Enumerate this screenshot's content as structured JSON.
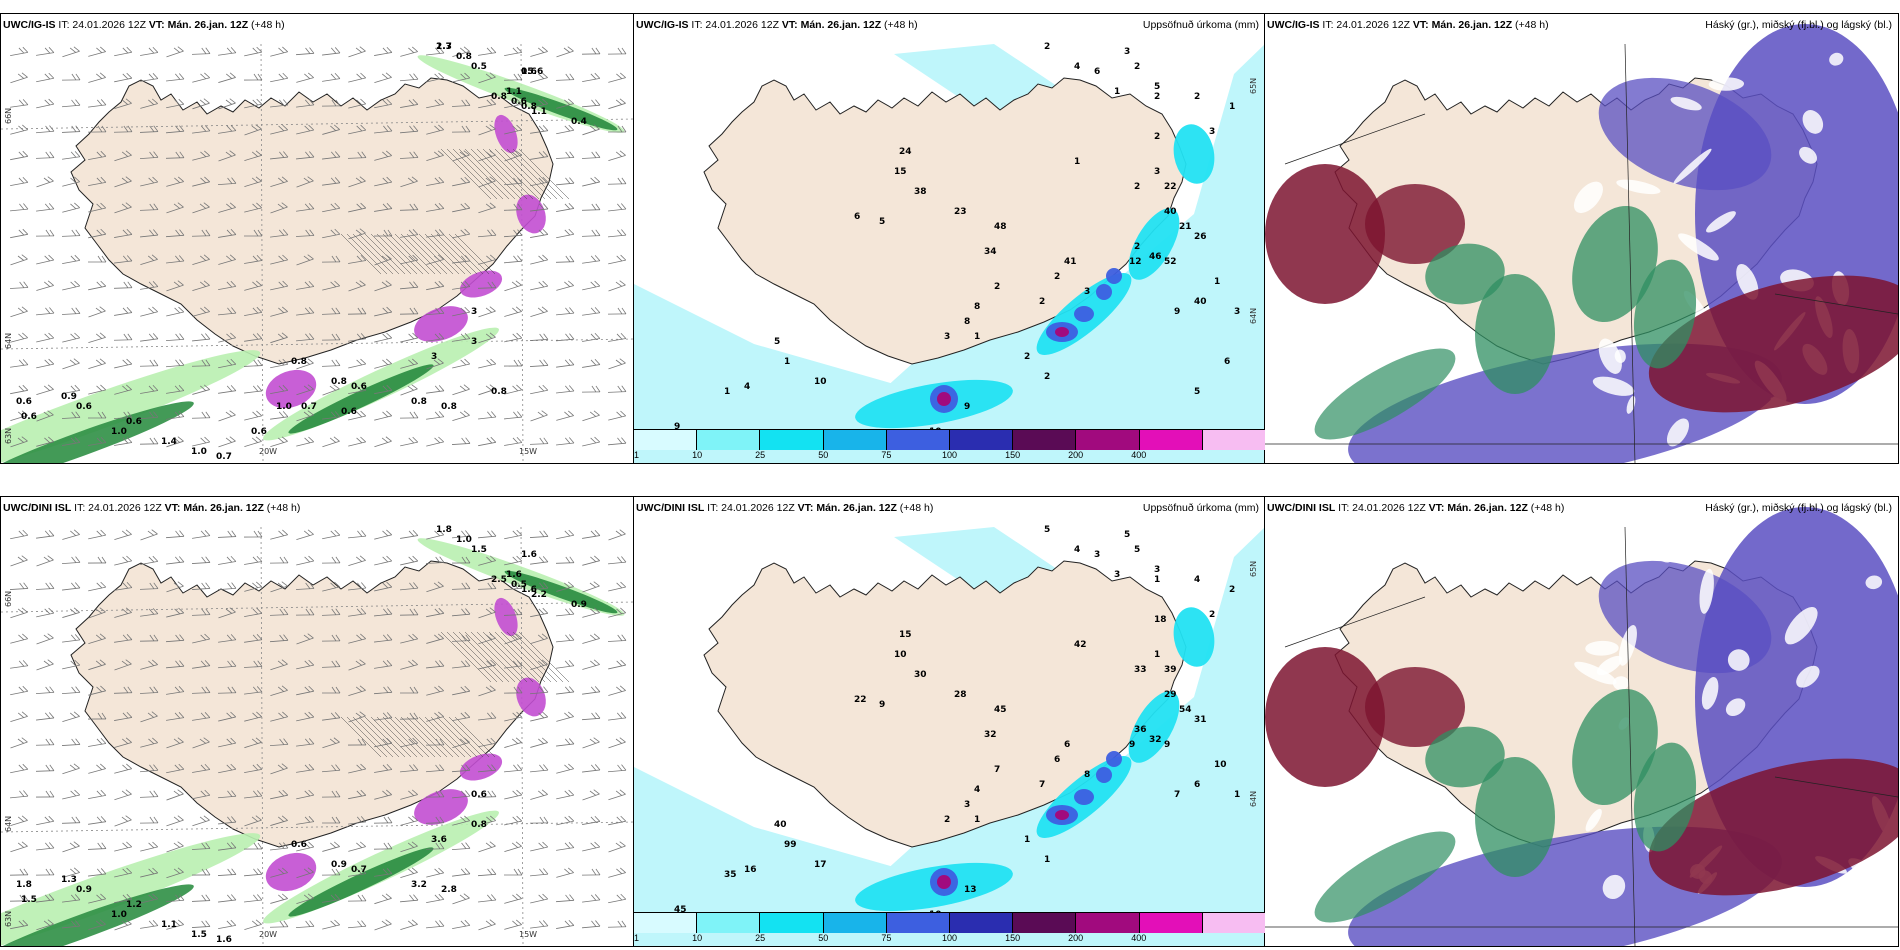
{
  "panels": [
    {
      "model": "UWC/IG-IS",
      "it": "IT: 24.01.2026 12Z",
      "vt_label": "VT:",
      "vt": "Mán. 26.jan. 12Z",
      "lead": "(+48 h)",
      "title": "",
      "axis": [
        "66N",
        "64N",
        "63N",
        "20W",
        "15W"
      ]
    },
    {
      "model": "UWC/IG-IS",
      "it": "IT: 24.01.2026 12Z",
      "vt_label": "VT:",
      "vt": "Mán. 26.jan. 12Z",
      "lead": "(+48 h)",
      "title": "Uppsöfnuð úrkoma (mm)",
      "axis": [
        "65N",
        "64N"
      ]
    },
    {
      "model": "UWC/IG-IS",
      "it": "IT: 24.01.2026 12Z",
      "vt_label": "VT:",
      "vt": "Mán. 26.jan. 12Z",
      "lead": "(+48 h)",
      "title": "Háský (gr.), miðský (fj.bl.) og lágský (bl.)",
      "axis": []
    },
    {
      "model": "UWC/DINI ISL",
      "it": "IT: 24.01.2026 12Z",
      "vt_label": "VT:",
      "vt": "Mán. 26.jan. 12Z",
      "lead": "(+48 h)",
      "title": "",
      "axis": [
        "66N",
        "64N",
        "63N",
        "20W",
        "15W"
      ]
    },
    {
      "model": "UWC/DINI ISL",
      "it": "IT: 24.01.2026 12Z",
      "vt_label": "VT:",
      "vt": "Mán. 26.jan. 12Z",
      "lead": "(+48 h)",
      "title": "Uppsöfnuð úrkoma (mm)",
      "axis": [
        "65N",
        "64N"
      ]
    },
    {
      "model": "UWC/DINI ISL",
      "it": "IT: 24.01.2026 12Z",
      "vt_label": "VT:",
      "vt": "Mán. 26.jan. 12Z",
      "lead": "(+48 h)",
      "title": "Háský (gr.), miðský (fj.bl.) og lágský (bl.)",
      "axis": []
    }
  ],
  "precip_colorbar": {
    "ticks": [
      "1",
      "10",
      "25",
      "50",
      "75",
      "100",
      "150",
      "200",
      "400"
    ],
    "colors": [
      "#d8fbff",
      "#7ff3f8",
      "#13e2f2",
      "#18b4ea",
      "#3d5fe0",
      "#2a2db0",
      "#5a0b55",
      "#a10a7e",
      "#e30fb8",
      "#f7bdf2"
    ]
  },
  "colors": {
    "land": "#f4e6d8",
    "precip_light": "#bff6fb",
    "precip_mid": "#22e2f2",
    "cloud_low": "#5a4fc2",
    "cloud_high": "#7c1430",
    "cloud_mid": "#2f8f62",
    "wind_bands": "#2f8f45",
    "snow_magenta": "#c24ed1"
  },
  "wind_labels_top": [
    "0.6",
    "1.7",
    "0.8",
    "0.5",
    "1.1",
    "0.8",
    "0.6",
    "0.8",
    "1.1",
    "0.4",
    "3",
    "3",
    "0.8",
    "0.8",
    "0.6",
    "3",
    "0.8",
    "0.8",
    "0.9",
    "0.6",
    "0.6",
    "0.6",
    "0.6",
    "1.4",
    "1.0",
    "0.7",
    "1.0",
    "0.8",
    "0.7",
    "0.6",
    "1.0",
    "0.6",
    "15.6",
    "2.3"
  ],
  "wind_labels_bot": [
    "1.6",
    "1.8",
    "1.0",
    "1.5",
    "1.6",
    "2.5",
    "0.5",
    "1.6",
    "2.2",
    "0.9",
    "0.6",
    "0.8",
    "0.6",
    "0.9",
    "0.7",
    "3.6",
    "3.2",
    "2.8",
    "1.3",
    "1.8",
    "0.9",
    "1.5",
    "1.2",
    "1.1",
    "1.5",
    "1.6",
    "1.0"
  ],
  "precip_labels_top": [
    "2",
    "3",
    "4",
    "6",
    "2",
    "5",
    "1",
    "2",
    "2",
    "1",
    "3",
    "2",
    "3",
    "1",
    "2",
    "22",
    "40",
    "21",
    "26",
    "2",
    "12",
    "46",
    "52",
    "41",
    "2",
    "3",
    "2",
    "2",
    "8",
    "8",
    "3",
    "1",
    "2",
    "2",
    "9",
    "10",
    "10",
    "4",
    "9",
    "5",
    "1",
    "1",
    "6",
    "5",
    "15",
    "24",
    "38",
    "23",
    "34",
    "48",
    "9",
    "40",
    "1",
    "3",
    "6",
    "5"
  ],
  "precip_labels_bot": [
    "5",
    "5",
    "4",
    "3",
    "5",
    "3",
    "3",
    "1",
    "4",
    "2",
    "2",
    "18",
    "1",
    "42",
    "33",
    "39",
    "29",
    "54",
    "31",
    "36",
    "9",
    "32",
    "9",
    "6",
    "6",
    "8",
    "7",
    "7",
    "4",
    "3",
    "2",
    "1",
    "1",
    "1",
    "13",
    "10",
    "17",
    "16",
    "45",
    "40",
    "99",
    "35",
    "22",
    "9",
    "10",
    "15",
    "30",
    "28",
    "32",
    "45",
    "7",
    "6",
    "10",
    "1"
  ],
  "cloud_labels": []
}
